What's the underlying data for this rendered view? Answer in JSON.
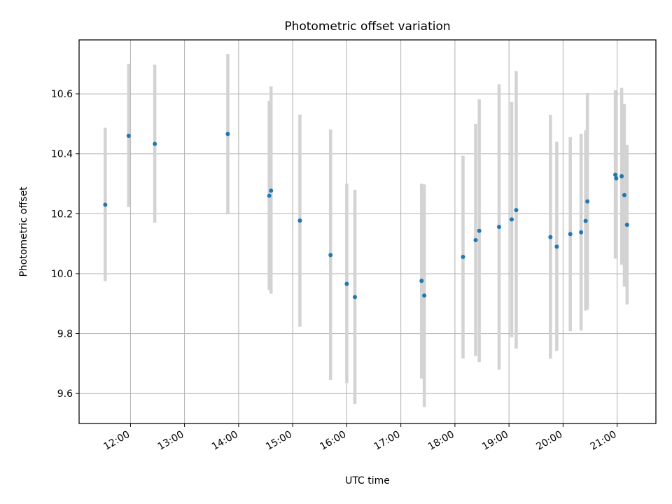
{
  "chart_data": {
    "type": "scatter",
    "title": "Photometric offset variation",
    "xlabel": "UTC time",
    "ylabel": "Photometric offset",
    "x_tick_labels": [
      "12:00",
      "13:00",
      "14:00",
      "15:00",
      "16:00",
      "17:00",
      "18:00",
      "19:00",
      "20:00",
      "21:00"
    ],
    "y_tick_labels": [
      "9.6",
      "9.8",
      "10.0",
      "10.2",
      "10.4",
      "10.6"
    ],
    "xlim": [
      "11:03",
      "21:43"
    ],
    "ylim": [
      9.5,
      10.78
    ],
    "grid": true,
    "colors": {
      "point": "#1f77b4",
      "errorbar": "#d3d3d3",
      "grid": "#b0b0b0"
    },
    "series": [
      {
        "points": [
          {
            "x": "11:32",
            "y": 10.23,
            "err_low": 9.975,
            "err_high": 10.487
          },
          {
            "x": "11:58",
            "y": 10.46,
            "err_low": 10.222,
            "err_high": 10.7
          },
          {
            "x": "12:27",
            "y": 10.433,
            "err_low": 10.17,
            "err_high": 10.697
          },
          {
            "x": "13:48",
            "y": 10.466,
            "err_low": 10.2,
            "err_high": 10.733
          },
          {
            "x": "14:34",
            "y": 10.26,
            "err_low": 9.945,
            "err_high": 10.577
          },
          {
            "x": "14:36",
            "y": 10.277,
            "err_low": 9.933,
            "err_high": 10.625
          },
          {
            "x": "15:08",
            "y": 10.177,
            "err_low": 9.823,
            "err_high": 10.531
          },
          {
            "x": "15:42",
            "y": 10.062,
            "err_low": 9.645,
            "err_high": 10.481
          },
          {
            "x": "16:00",
            "y": 9.966,
            "err_low": 9.635,
            "err_high": 10.3
          },
          {
            "x": "16:09",
            "y": 9.922,
            "err_low": 9.565,
            "err_high": 10.28
          },
          {
            "x": "17:23",
            "y": 9.976,
            "err_low": 9.65,
            "err_high": 10.3
          },
          {
            "x": "17:26",
            "y": 9.927,
            "err_low": 9.555,
            "err_high": 10.298
          },
          {
            "x": "18:09",
            "y": 10.056,
            "err_low": 9.717,
            "err_high": 10.393
          },
          {
            "x": "18:23",
            "y": 10.112,
            "err_low": 9.725,
            "err_high": 10.5
          },
          {
            "x": "18:27",
            "y": 10.143,
            "err_low": 9.705,
            "err_high": 10.582
          },
          {
            "x": "18:49",
            "y": 10.156,
            "err_low": 9.68,
            "err_high": 10.632
          },
          {
            "x": "19:03",
            "y": 10.181,
            "err_low": 9.788,
            "err_high": 10.573
          },
          {
            "x": "19:08",
            "y": 10.212,
            "err_low": 9.75,
            "err_high": 10.676
          },
          {
            "x": "19:46",
            "y": 10.122,
            "err_low": 9.716,
            "err_high": 10.53
          },
          {
            "x": "19:53",
            "y": 10.09,
            "err_low": 9.742,
            "err_high": 10.44
          },
          {
            "x": "20:08",
            "y": 10.132,
            "err_low": 9.808,
            "err_high": 10.456
          },
          {
            "x": "20:20",
            "y": 10.138,
            "err_low": 9.81,
            "err_high": 10.467
          },
          {
            "x": "20:25",
            "y": 10.176,
            "err_low": 9.877,
            "err_high": 10.478
          },
          {
            "x": "20:27",
            "y": 10.241,
            "err_low": 9.88,
            "err_high": 10.603
          },
          {
            "x": "20:58",
            "y": 10.33,
            "err_low": 10.05,
            "err_high": 10.612
          },
          {
            "x": "20:59",
            "y": 10.318,
            "err_low": 10.05,
            "err_high": 10.59
          },
          {
            "x": "21:05",
            "y": 10.325,
            "err_low": 10.03,
            "err_high": 10.62
          },
          {
            "x": "21:08",
            "y": 10.262,
            "err_low": 9.957,
            "err_high": 10.566
          },
          {
            "x": "21:11",
            "y": 10.163,
            "err_low": 9.897,
            "err_high": 10.43
          }
        ]
      }
    ]
  }
}
